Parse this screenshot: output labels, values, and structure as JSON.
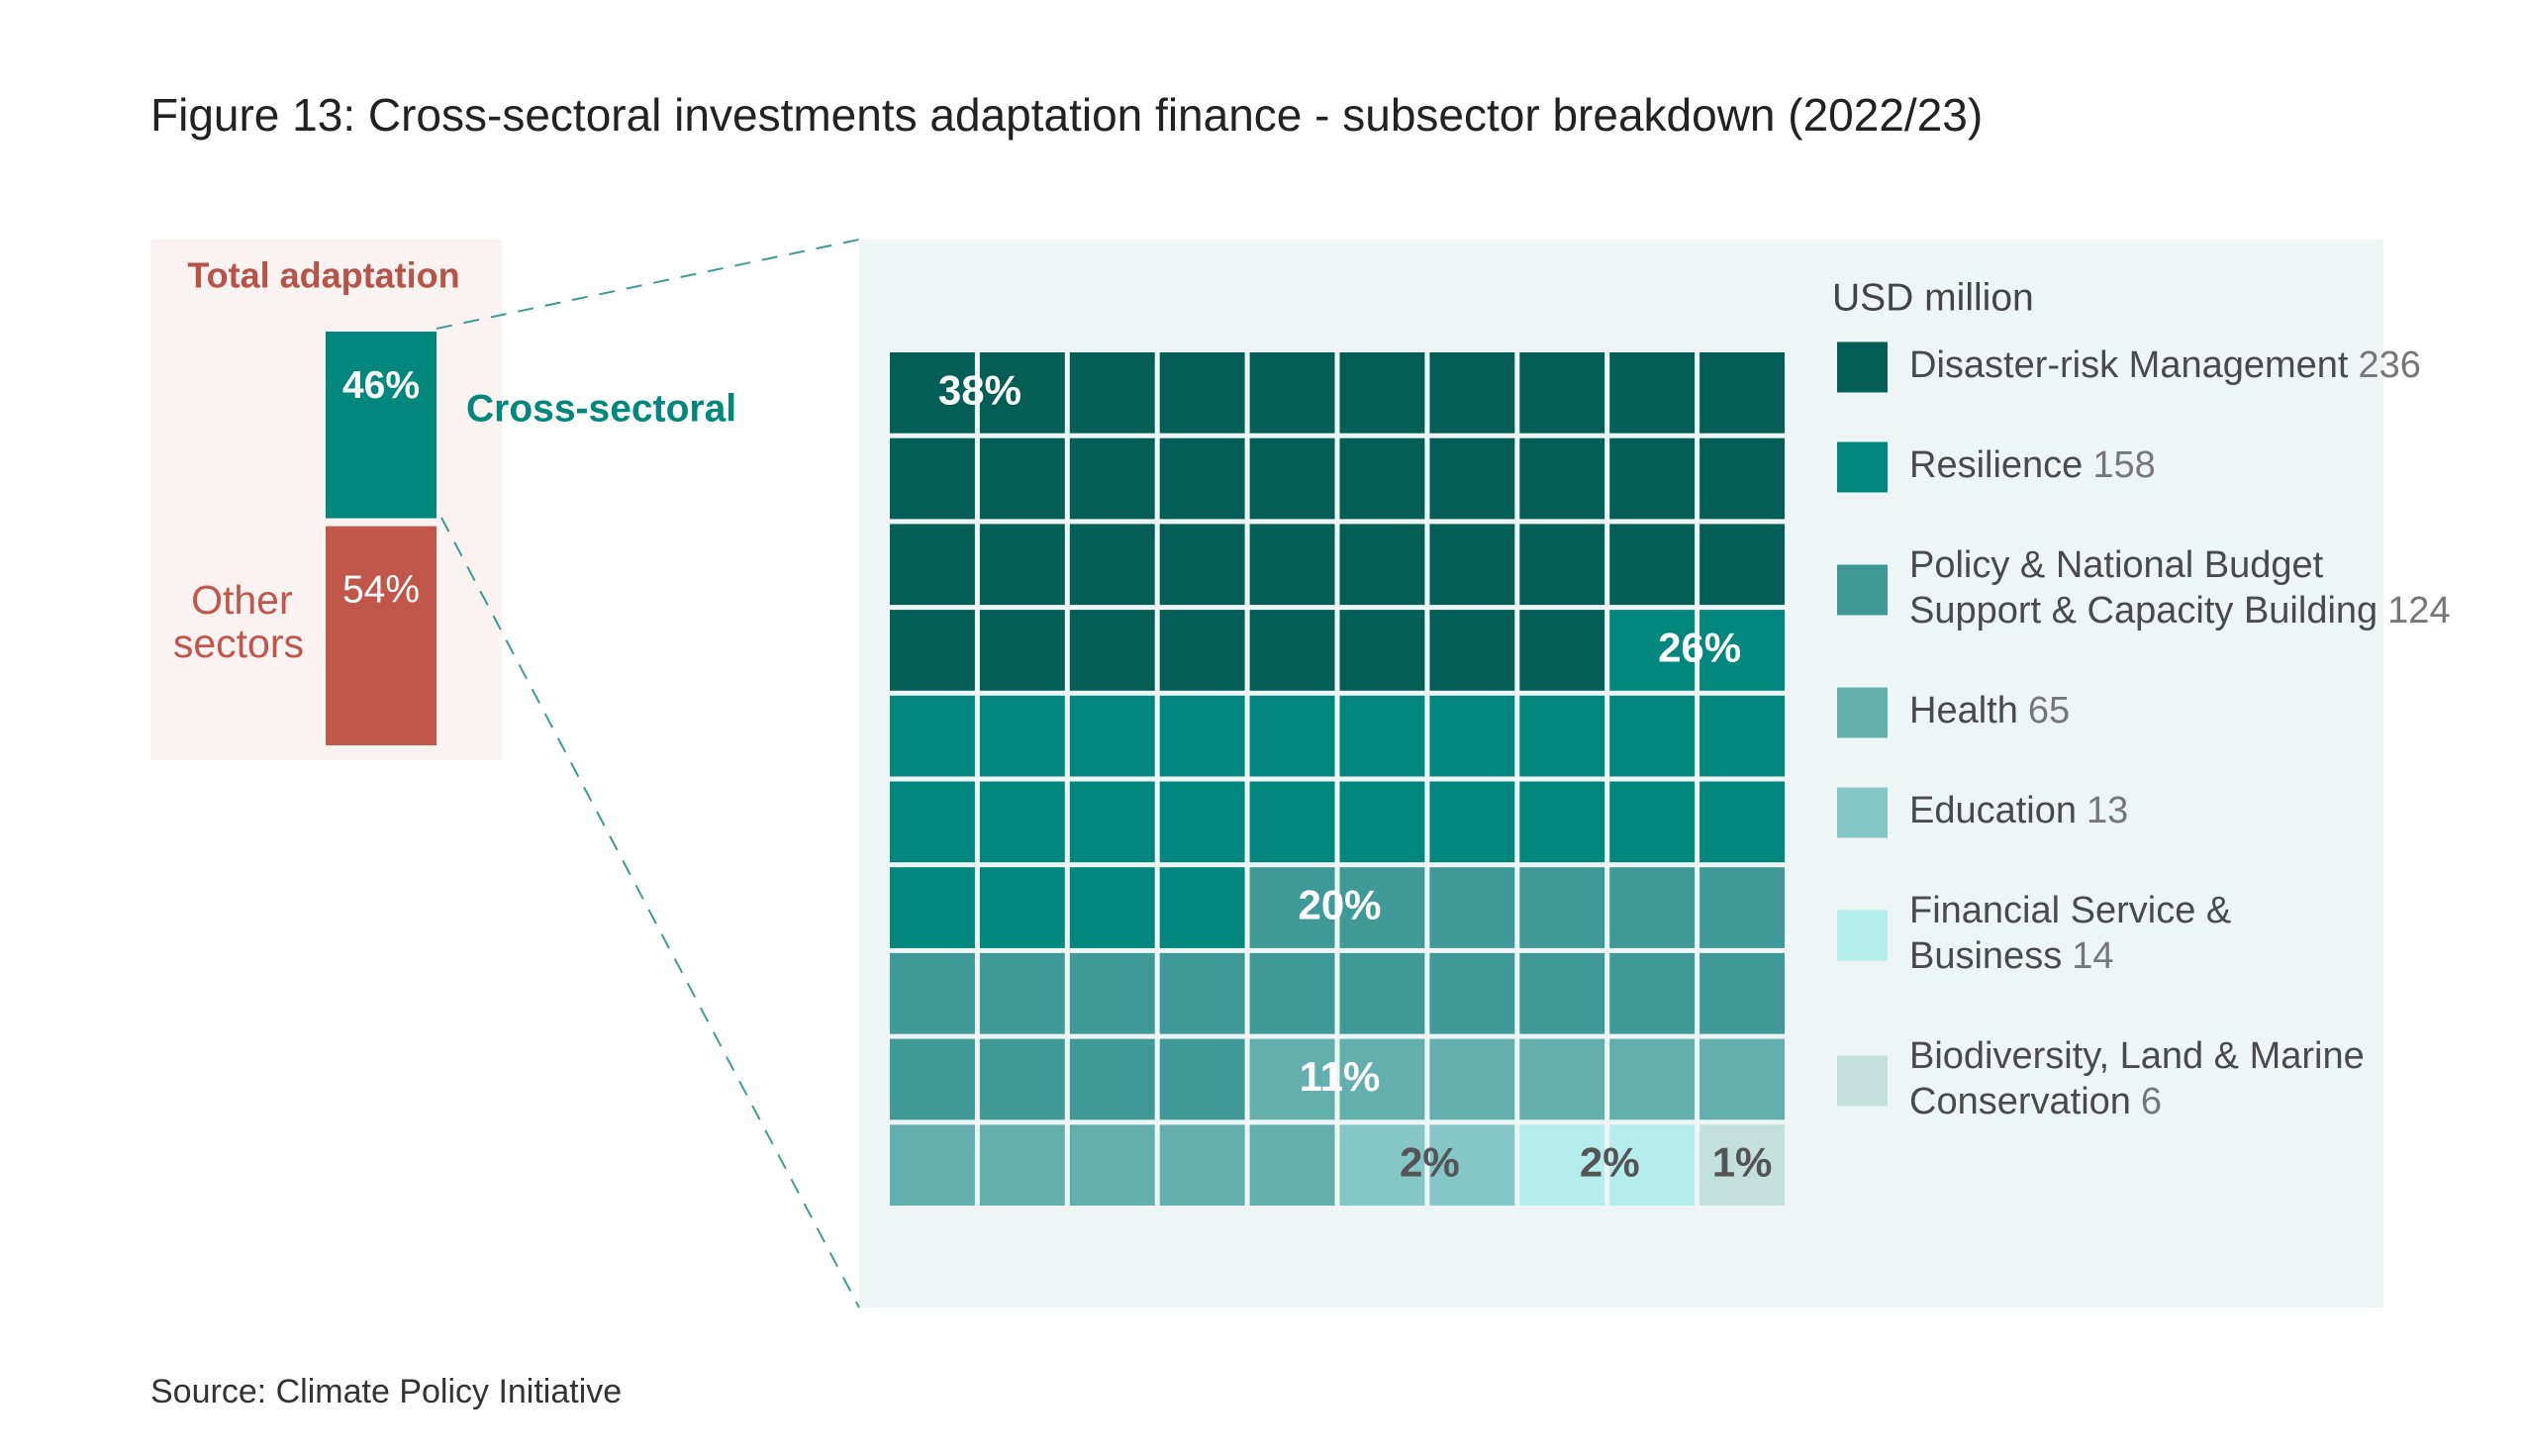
{
  "title": "Figure 13: Cross-sectoral investments adaptation finance - subsector breakdown (2022/23)",
  "source": "Source: Climate Policy Initiative",
  "chart_data": [
    {
      "type": "stacked-bar",
      "title": "Total adaptation",
      "categories": [
        "Cross-sectoral",
        "Other sectors"
      ],
      "values": [
        46,
        54
      ],
      "value_labels": [
        "46%",
        "54%"
      ],
      "colors": [
        "#02877d",
        "#c0574a"
      ]
    },
    {
      "type": "waffle",
      "unit": "USD million",
      "categories": [
        "Disaster-risk Management",
        "Resilience",
        "Policy & National Budget Support & Capacity Building",
        "Health",
        "Education",
        "Financial Service & Business",
        "Biodiversity, Land & Marine Conservation"
      ],
      "values": [
        236,
        158,
        124,
        65,
        13,
        14,
        6
      ],
      "percents": [
        38,
        26,
        20,
        11,
        2,
        2,
        1
      ],
      "percent_labels": [
        "38%",
        "26%",
        "20%",
        "11%",
        "2%",
        "2%",
        "1%"
      ],
      "colors": [
        "#035f56",
        "#01877d",
        "#3f9a97",
        "#62afae",
        "#85c7c6",
        "#b5ecec",
        "#c4e0dc"
      ],
      "label_colors": [
        "#ffffff",
        "#ffffff",
        "#ffffff",
        "#ffffff",
        "#555555",
        "#555555",
        "#555555"
      ]
    }
  ]
}
